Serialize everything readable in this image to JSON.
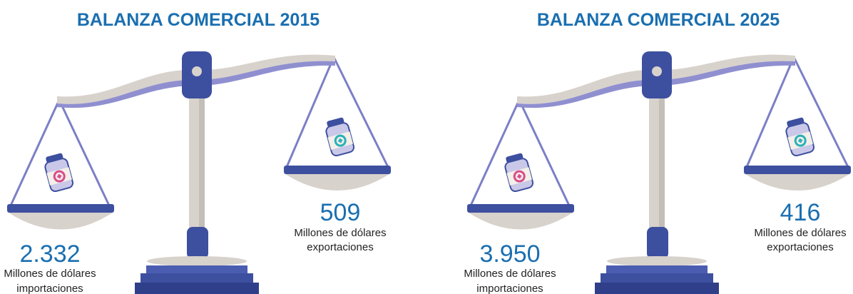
{
  "panels": [
    {
      "title": "BALANZA COMERCIAL 2015",
      "imports": {
        "value": "2.332",
        "lines": [
          "Millones de dólares",
          "importaciones"
        ]
      },
      "exports": {
        "value": "509",
        "lines": [
          "Millones de dólares",
          "exportaciones"
        ]
      }
    },
    {
      "title": "BALANZA COMERCIAL 2025",
      "imports": {
        "value": "3.950",
        "lines": [
          "Millones de dólares",
          "importaciones"
        ]
      },
      "exports": {
        "value": "416",
        "lines": [
          "Millones de dólares",
          "exportaciones"
        ]
      }
    }
  ]
}
